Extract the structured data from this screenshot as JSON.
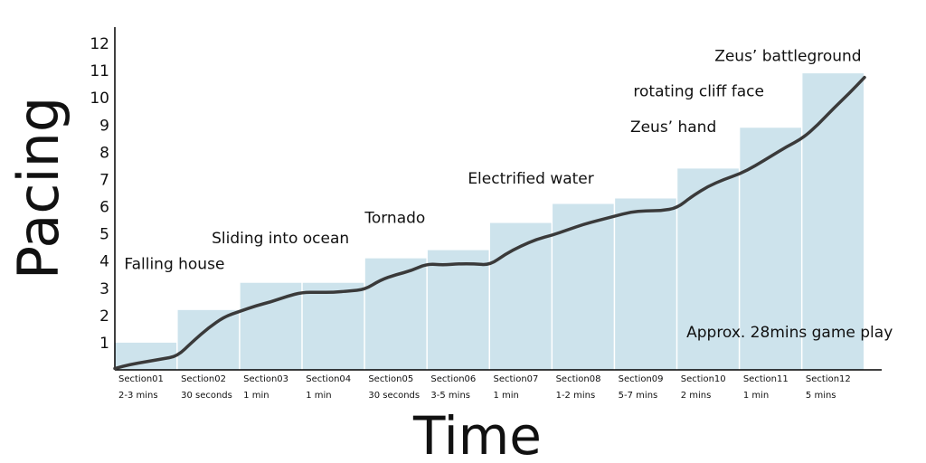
{
  "chart_data": {
    "type": "bar",
    "title": "",
    "xlabel": "Time",
    "ylabel": "Pacing",
    "ylim": [
      0,
      12
    ],
    "y_ticks": [
      1,
      2,
      3,
      4,
      5,
      6,
      7,
      8,
      9,
      10,
      11,
      12
    ],
    "grid": false,
    "bar_color": "#cde3ec",
    "line_color": "#3a3a3a",
    "categories": [
      {
        "name": "Section01",
        "duration": "2-3 mins"
      },
      {
        "name": "Section02",
        "duration": "30 seconds"
      },
      {
        "name": "Section03",
        "duration": "1 min"
      },
      {
        "name": "Section04",
        "duration": "1 min"
      },
      {
        "name": "Section05",
        "duration": "30 seconds"
      },
      {
        "name": "Section06",
        "duration": "3-5 mins"
      },
      {
        "name": "Section07",
        "duration": "1 min"
      },
      {
        "name": "Section08",
        "duration": "1-2 mins"
      },
      {
        "name": "Section09",
        "duration": "5-7 mins"
      },
      {
        "name": "Section10",
        "duration": "2 mins"
      },
      {
        "name": "Section11",
        "duration": "1 min"
      },
      {
        "name": "Section12",
        "duration": "5 mins"
      }
    ],
    "values": [
      1.0,
      2.2,
      3.2,
      3.2,
      4.1,
      4.4,
      5.4,
      6.1,
      6.3,
      7.4,
      8.9,
      10.9
    ],
    "pacing_curve": [
      [
        0,
        0.05
      ],
      [
        0.25,
        0.2
      ],
      [
        0.5,
        0.3
      ],
      [
        0.75,
        0.4
      ],
      [
        1.0,
        0.5
      ],
      [
        1.25,
        1.05
      ],
      [
        1.5,
        1.55
      ],
      [
        1.75,
        1.95
      ],
      [
        2.0,
        2.15
      ],
      [
        2.25,
        2.35
      ],
      [
        2.5,
        2.5
      ],
      [
        2.75,
        2.7
      ],
      [
        3.0,
        2.85
      ],
      [
        3.25,
        2.85
      ],
      [
        3.5,
        2.85
      ],
      [
        3.75,
        2.9
      ],
      [
        4.0,
        2.95
      ],
      [
        4.25,
        3.3
      ],
      [
        4.5,
        3.5
      ],
      [
        4.75,
        3.65
      ],
      [
        5.0,
        3.9
      ],
      [
        5.25,
        3.85
      ],
      [
        5.5,
        3.9
      ],
      [
        5.75,
        3.9
      ],
      [
        6.0,
        3.85
      ],
      [
        6.25,
        4.25
      ],
      [
        6.5,
        4.55
      ],
      [
        6.75,
        4.8
      ],
      [
        7.0,
        4.95
      ],
      [
        7.25,
        5.15
      ],
      [
        7.5,
        5.35
      ],
      [
        7.75,
        5.5
      ],
      [
        8.0,
        5.65
      ],
      [
        8.25,
        5.8
      ],
      [
        8.5,
        5.85
      ],
      [
        8.75,
        5.85
      ],
      [
        9.0,
        5.95
      ],
      [
        9.25,
        6.4
      ],
      [
        9.5,
        6.75
      ],
      [
        9.75,
        7.0
      ],
      [
        10.0,
        7.2
      ],
      [
        10.25,
        7.5
      ],
      [
        10.5,
        7.85
      ],
      [
        10.75,
        8.2
      ],
      [
        11.0,
        8.5
      ],
      [
        11.25,
        9.0
      ],
      [
        11.5,
        9.6
      ],
      [
        11.75,
        10.15
      ],
      [
        12.0,
        10.75
      ]
    ],
    "annotations": [
      {
        "text": "Falling house",
        "x": 0.15,
        "y": 3.7
      },
      {
        "text": "Sliding into ocean",
        "x": 1.55,
        "y": 4.65
      },
      {
        "text": "Tornado",
        "x": 4.0,
        "y": 5.4
      },
      {
        "text": "Electrified water",
        "x": 5.65,
        "y": 6.85
      },
      {
        "text": "Zeus’ hand",
        "x": 8.25,
        "y": 8.75
      },
      {
        "text": "rotating cliff face",
        "x": 8.3,
        "y": 10.05
      },
      {
        "text": "Zeus’ battleground",
        "x": 9.6,
        "y": 11.35
      },
      {
        "text": "Approx. 28mins game play",
        "x": 9.15,
        "y": 1.2
      }
    ]
  }
}
